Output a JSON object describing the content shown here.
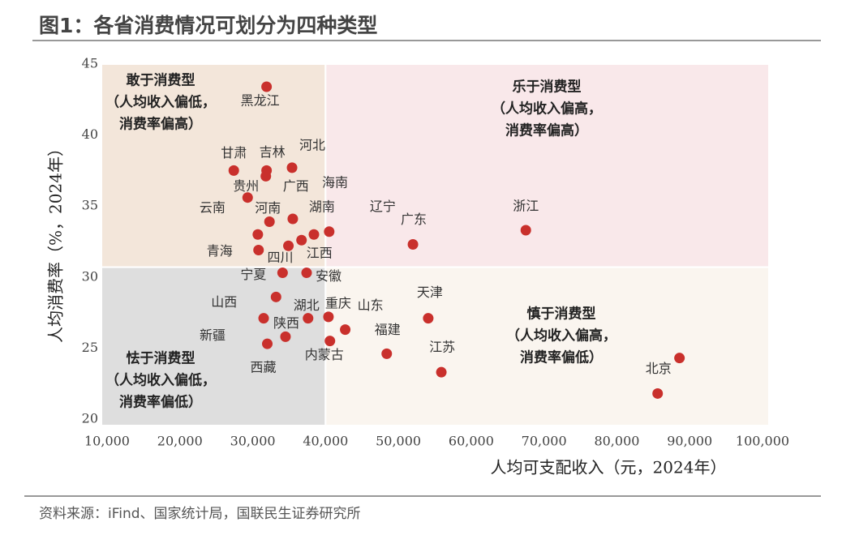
{
  "chart_data": {
    "type": "scatter",
    "title": "图1：各省消费情况可划分为四种类型",
    "x_label": "人均可支配收入（元，2024年）",
    "y_label": "人均消费率（%，2024年）",
    "source": "资料来源：iFind、国家统计局，国联民生证券研究所",
    "color": "#c9302c",
    "xlim": [
      10000,
      100000
    ],
    "ylim": [
      20,
      45
    ],
    "xticks": [
      {
        "value": 10000,
        "label": "10,000"
      },
      {
        "value": 20000,
        "label": "20,000"
      },
      {
        "value": 30000,
        "label": "30,000"
      },
      {
        "value": 40000,
        "label": "40,000"
      },
      {
        "value": 50000,
        "label": "50,000"
      },
      {
        "value": 60000,
        "label": "60,000"
      },
      {
        "value": 70000,
        "label": "70,000"
      },
      {
        "value": 80000,
        "label": "80,000"
      },
      {
        "value": 90000,
        "label": "90,000"
      },
      {
        "value": 100000,
        "label": "100,000"
      }
    ],
    "yticks": [
      20,
      25,
      30,
      35,
      40,
      45
    ],
    "quadrant_split": {
      "x": 40000,
      "y": 30.7
    },
    "quadrants": [
      {
        "lines": [
          "敢于消费型",
          "（人均收入偏低，",
          "消费率偏高）"
        ],
        "color": "#f3e6da"
      },
      {
        "lines": [
          "乐于消费型",
          "（人均收入偏高，",
          "消费率偏高）"
        ],
        "color": "#f9e8ea"
      },
      {
        "lines": [
          "怯于消费型",
          "（人均收入偏低，",
          "消费率偏低）"
        ],
        "color": "#dedede"
      },
      {
        "lines": [
          "慎于消费型",
          "（人均收入偏高，",
          "消费率偏低）"
        ],
        "color": "#faf5ef"
      }
    ],
    "point_labels": [
      "黑龙江",
      "甘肃",
      "吉林",
      "河北",
      "贵州",
      "广西",
      "云南",
      "河南",
      "湖南",
      "海南",
      "辽宁",
      "江西",
      "四川",
      "青海",
      "广东",
      "浙江",
      "宁夏",
      "安徽",
      "山西",
      "湖北",
      "重庆",
      "山东",
      "天津",
      "新疆",
      "陕西",
      "内蒙古",
      "西藏",
      "福建",
      "江苏",
      "北京",
      null
    ],
    "x": [
      31900,
      27400,
      31900,
      35400,
      29300,
      31800,
      30700,
      32300,
      35500,
      38400,
      40500,
      36700,
      34900,
      30800,
      52000,
      67500,
      34100,
      37400,
      33200,
      37600,
      40400,
      42700,
      54100,
      31500,
      34500,
      40600,
      32000,
      48400,
      55900,
      85600,
      88600
    ],
    "values": [
      43.4,
      37.5,
      37.5,
      37.7,
      35.6,
      37.1,
      33.0,
      33.9,
      34.1,
      33.0,
      33.2,
      32.6,
      32.2,
      31.9,
      32.3,
      33.3,
      30.3,
      30.3,
      28.6,
      27.1,
      27.2,
      26.3,
      27.1,
      27.1,
      25.8,
      25.5,
      25.3,
      24.6,
      23.3,
      21.8,
      24.3
    ]
  }
}
